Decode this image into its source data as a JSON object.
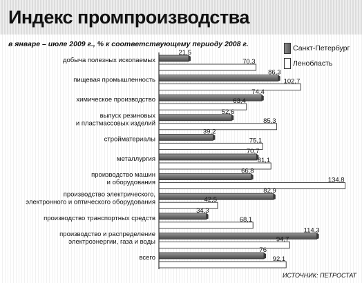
{
  "title": "Индекс промпроизводства",
  "subtitle": "в январе – июле 2009 г., % к соответствующему периоду 2008 г.",
  "source": "ИСТОЧНИК: ПЕТРОСТАТ",
  "colors": {
    "spb": "#6e6e6e",
    "len": "#ffffff",
    "outline": "#333333"
  },
  "chart_data": {
    "type": "bar",
    "orientation": "horizontal",
    "title": "Индекс промпроизводства",
    "subtitle": "в январе – июле 2009 г., % к соответствующему периоду 2008 г.",
    "legend_position": "top-right",
    "xlim": [
      0,
      140
    ],
    "grid": false,
    "categories": [
      [
        "добыча полезных ископаемых"
      ],
      [
        "пищевая промышленность"
      ],
      [
        "химическое производство"
      ],
      [
        "выпуск резиновых",
        "и пластмассовых изделий"
      ],
      [
        "стройматериалы"
      ],
      [
        "металлургия"
      ],
      [
        "производство машин",
        "и оборудования"
      ],
      [
        "производство электрического,",
        "электронного и оптического оборудования"
      ],
      [
        "производство транспортных средств"
      ],
      [
        "производство и распределение",
        "электроэнергии, газа и воды"
      ],
      [
        "всего"
      ]
    ],
    "series": [
      {
        "name": "Санкт-Петербург",
        "values": [
          21.5,
          86.3,
          74.4,
          52.6,
          39.2,
          70.7,
          66.8,
          82.9,
          34.3,
          114.3,
          76
        ],
        "labels": [
          "21,5",
          "86,3",
          "74,4",
          "52,6",
          "39,2",
          "70,7",
          "66,8",
          "82,9",
          "34,3",
          "114,3",
          "76"
        ]
      },
      {
        "name": "Ленобласть",
        "values": [
          70.3,
          102.7,
          63.4,
          85.3,
          75.1,
          81.1,
          134.8,
          42.5,
          68.1,
          94.7,
          92.1
        ],
        "labels": [
          "70,3",
          "102,7",
          "63,4",
          "85,3",
          "75,1",
          "81,1",
          "134,8",
          "42,5",
          "68,1",
          "94,7",
          "92,1"
        ]
      }
    ]
  }
}
